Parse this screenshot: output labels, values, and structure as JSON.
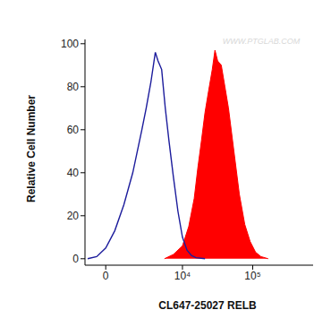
{
  "chart_data": {
    "type": "line",
    "xlabel": "CL647-25027 RELB",
    "ylabel": "Relative Cell Number",
    "annotations": [
      "WWW.PTGLAB.COM"
    ],
    "log": "x",
    "xlim": [
      -1200,
      720000
    ],
    "xticks": [
      0,
      {
        "value": 10000,
        "label": "10⁴"
      },
      {
        "value": 100000,
        "label": "10⁵"
      }
    ],
    "ylim": [
      -3,
      102
    ],
    "yticks": [
      0,
      20,
      40,
      60,
      80,
      100
    ],
    "series": [
      {
        "type": "area",
        "color": "#ff0000",
        "x": [
          5460,
          7400,
          10000,
          12300,
          14730,
          16560,
          18700,
          21000,
          23600,
          26630,
          29100,
          31800,
          35800,
          40300,
          45300,
          54100,
          64600,
          77100,
          92000,
          110000,
          131000,
          166000
        ],
        "values": [
          0,
          2,
          6,
          15,
          28,
          42,
          55,
          68,
          78,
          88,
          97,
          92,
          90,
          80,
          70,
          50,
          30,
          16,
          8,
          3,
          1,
          0
        ]
      },
      {
        "type": "line",
        "color": "#1c1c9c",
        "x": [
          -1025,
          -490,
          0,
          490,
          1025,
          1645,
          2418,
          2855,
          3395,
          3985,
          4380,
          4970,
          5625,
          6365,
          7400,
          8610,
          10000,
          11610,
          13450,
          15580,
          21000
        ],
        "values": [
          0,
          1,
          5,
          13,
          25,
          40,
          60,
          70,
          82,
          96,
          92,
          88,
          70,
          55,
          38,
          22,
          10,
          4,
          1.5,
          0.5,
          0
        ]
      }
    ]
  }
}
